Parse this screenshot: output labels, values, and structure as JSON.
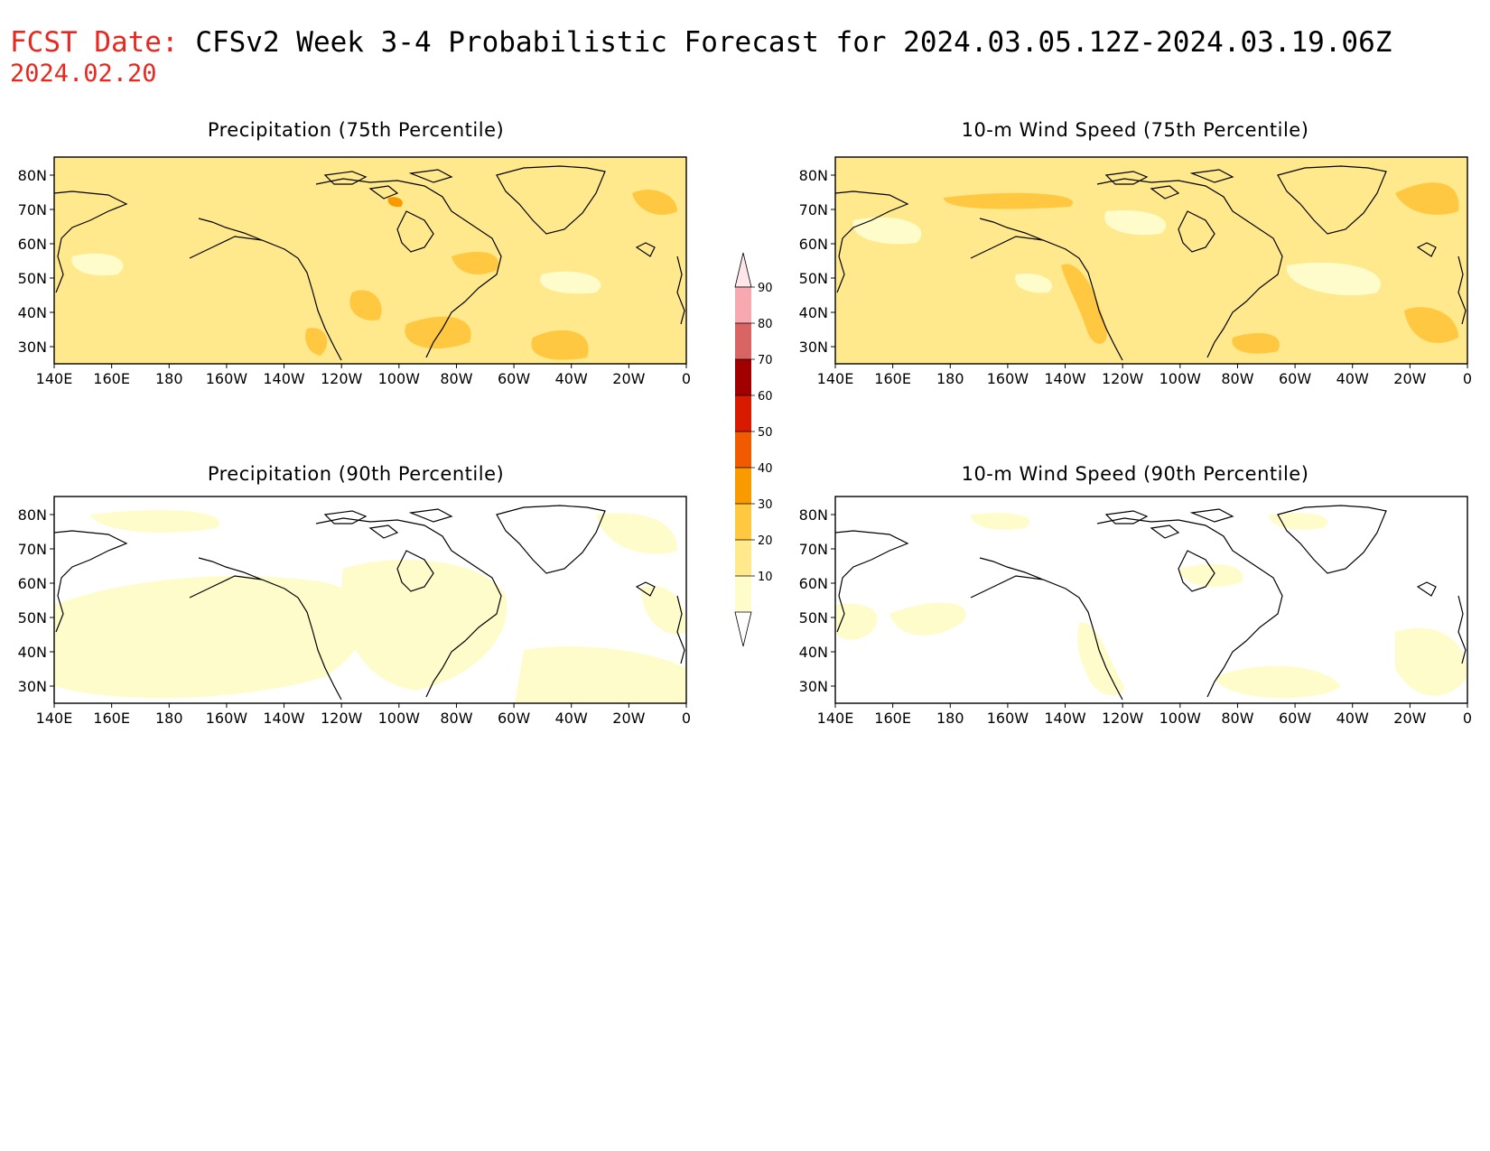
{
  "header": {
    "fcst_label": "FCST Date:",
    "title": "CFSv2 Week 3-4 Probabilistic Forecast for 2024.03.05.12Z-2024.03.19.06Z",
    "fcst_date": "2024.02.20"
  },
  "axes": {
    "lon_labels": [
      "140E",
      "160E",
      "180",
      "160W",
      "140W",
      "120W",
      "100W",
      "80W",
      "60W",
      "40W",
      "20W",
      "0"
    ],
    "lat_labels": [
      "80N",
      "70N",
      "60N",
      "50N",
      "40N",
      "30N"
    ]
  },
  "panels": [
    {
      "id": "precip75",
      "title": "Precipitation (75th Percentile)",
      "base_fill": "#ffe98c"
    },
    {
      "id": "wind75",
      "title": "10-m Wind Speed (75th Percentile)",
      "base_fill": "#ffe98c"
    },
    {
      "id": "precip90",
      "title": "Precipitation (90th Percentile)",
      "base_fill": "#ffffff"
    },
    {
      "id": "wind90",
      "title": "10-m Wind Speed (90th Percentile)",
      "base_fill": "#ffffff"
    }
  ],
  "colorbar": {
    "levels": [
      "90",
      "80",
      "70",
      "60",
      "50",
      "40",
      "30",
      "20",
      "10"
    ],
    "colors": {
      "c10": "#fffccc",
      "c20": "#ffe98c",
      "c30": "#ffc840",
      "c40": "#f99a00",
      "c50": "#f05a00",
      "c60": "#d71a00",
      "c70": "#a00000",
      "c80": "#d96464",
      "c90": "#f7a8b0",
      "top": "#ffe6ea"
    }
  }
}
